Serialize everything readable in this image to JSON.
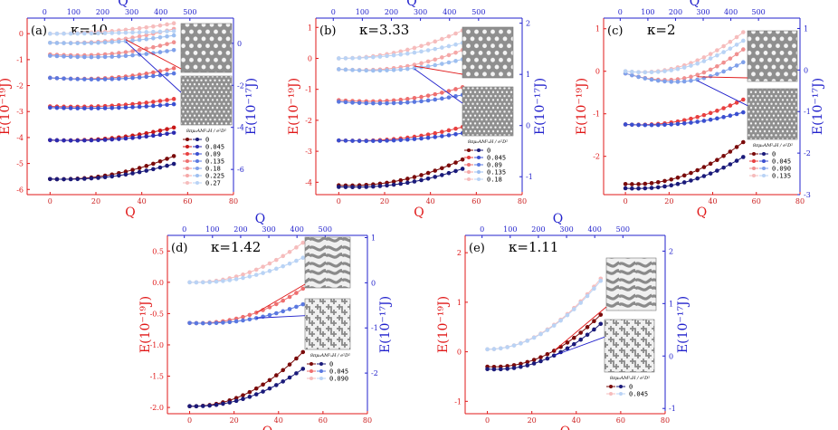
{
  "colors": {
    "left_axis": "#e01818",
    "right_axis": "#2222cc",
    "palette_red": [
      "#7a0a0a",
      "#c81818",
      "#e84040",
      "#ee6f6f",
      "#f09090",
      "#f5a8a8",
      "#f6bcbc"
    ],
    "palette_blue": [
      "#1a1a7a",
      "#2b2bb0",
      "#3a4fd0",
      "#5a78e0",
      "#7fa0ea",
      "#9dbff0",
      "#b9d3f5"
    ]
  },
  "chart_data": [
    {
      "type": "line",
      "panel": "(a)",
      "kappa_label": "κ=10",
      "xlabel": "Q",
      "x2label": "Q",
      "ylabel": "E(10⁻¹⁹J)",
      "y2label": "E(10⁻¹⁷J)",
      "xlim": [
        -10,
        80
      ],
      "x2lim": [
        -60,
        650
      ],
      "xticks": [
        0,
        20,
        40,
        60,
        80
      ],
      "x2ticks": [
        0,
        100,
        200,
        300,
        400,
        500
      ],
      "ylim": [
        -6.2,
        0.6
      ],
      "yticks": [
        0,
        -1,
        -2,
        -3,
        -4,
        -5,
        -6
      ],
      "y2lim": [
        -7.2,
        1.2
      ],
      "y2ticks": [
        0,
        -2,
        -4,
        -6
      ],
      "legend_title": "8πμ₀AM²ₛH / e²D²",
      "legend_labels": [
        "0",
        "0.045",
        "0.09",
        "0.135",
        "0.18",
        "0.225",
        "0.27"
      ],
      "x_values": [
        0,
        3,
        6,
        9,
        12,
        15,
        18,
        21,
        24,
        27,
        30,
        33,
        36,
        39,
        42,
        45,
        48,
        51,
        54
      ],
      "series_red": [
        {
          "start": -5.6,
          "dip": -0.05,
          "end": -4.7
        },
        {
          "start": -4.1,
          "dip": -0.05,
          "end": -3.6
        },
        {
          "start": -2.8,
          "dip": -0.05,
          "end": -2.5
        },
        {
          "start": -1.7,
          "dip": -0.1,
          "end": -1.3
        },
        {
          "start": -0.8,
          "dip": -0.1,
          "end": -0.3
        },
        {
          "start": -0.35,
          "dip": -0.05,
          "end": 0.2
        },
        {
          "start": 0.0,
          "dip": 0.0,
          "end": 0.4
        }
      ],
      "series_blue": [
        {
          "start": -5.6,
          "dip": -0.05,
          "end": -5.0
        },
        {
          "start": -4.1,
          "dip": -0.05,
          "end": -3.8
        },
        {
          "start": -2.85,
          "dip": -0.05,
          "end": -2.7
        },
        {
          "start": -1.7,
          "dip": -0.1,
          "end": -1.5
        },
        {
          "start": -0.85,
          "dip": -0.1,
          "end": -0.6
        },
        {
          "start": -0.35,
          "dip": -0.05,
          "end": -0.05
        },
        {
          "start": 0.0,
          "dip": 0.0,
          "end": 0.1
        }
      ]
    },
    {
      "type": "line",
      "panel": "(b)",
      "kappa_label": "κ=3.33",
      "xlabel": "Q",
      "x2label": "Q",
      "ylabel": "E(10⁻¹⁹J)",
      "y2label": "E(10⁻¹⁷J)",
      "xlim": [
        -10,
        80
      ],
      "x2lim": [
        -60,
        650
      ],
      "xticks": [
        0,
        20,
        40,
        60,
        80
      ],
      "x2ticks": [
        0,
        100,
        200,
        300,
        400,
        500
      ],
      "ylim": [
        -4.4,
        1.3
      ],
      "yticks": [
        1,
        0,
        -1,
        -2,
        -3,
        -4
      ],
      "y2lim": [
        -1.35,
        2.1
      ],
      "y2ticks": [
        2,
        1,
        0,
        -1
      ],
      "legend_title": "8πμ₀AM²ₛH / e²D²",
      "legend_labels": [
        "0",
        "0.045",
        "0.09",
        "0.135",
        "0.18"
      ],
      "x_values": [
        0,
        3,
        6,
        9,
        12,
        15,
        18,
        21,
        24,
        27,
        30,
        33,
        36,
        39,
        42,
        45,
        48,
        51,
        54
      ],
      "series_red": [
        {
          "start": -4.1,
          "dip": -0.05,
          "end": -3.25
        },
        {
          "start": -2.65,
          "dip": -0.05,
          "end": -2.2
        },
        {
          "start": -1.35,
          "dip": -0.1,
          "end": -0.9
        },
        {
          "start": -0.35,
          "dip": -0.1,
          "end": 0.3
        },
        {
          "start": 0.0,
          "dip": 0.0,
          "end": 0.9
        }
      ],
      "series_blue": [
        {
          "start": -4.15,
          "dip": -0.05,
          "end": -3.55
        },
        {
          "start": -2.65,
          "dip": -0.05,
          "end": -2.4
        },
        {
          "start": -1.4,
          "dip": -0.1,
          "end": -1.15
        },
        {
          "start": -0.35,
          "dip": -0.1,
          "end": 0.0
        },
        {
          "start": 0.0,
          "dip": 0.0,
          "end": 0.5
        }
      ]
    },
    {
      "type": "line",
      "panel": "(c)",
      "kappa_label": "κ=2",
      "xlabel": "Q",
      "x2label": "Q",
      "ylabel": "E(10⁻¹⁹J)",
      "y2label": "E(10⁻¹⁷J)",
      "xlim": [
        -10,
        80
      ],
      "x2lim": [
        -60,
        650
      ],
      "xticks": [
        0,
        20,
        40,
        60,
        80
      ],
      "x2ticks": [
        0,
        100,
        200,
        300,
        400,
        500
      ],
      "ylim": [
        -2.9,
        1.25
      ],
      "yticks": [
        1,
        0,
        -1,
        -2
      ],
      "y2lim": [
        -3.0,
        1.25
      ],
      "y2ticks": [
        1,
        0,
        -1,
        -2,
        -3
      ],
      "legend_title": "8πμ₀AM²ₛH / e²D²",
      "legend_labels": [
        "0",
        "0.045",
        "0.090",
        "0.135"
      ],
      "x_values": [
        0,
        3,
        6,
        9,
        12,
        15,
        18,
        21,
        24,
        27,
        30,
        33,
        36,
        39,
        42,
        45,
        48,
        51,
        54
      ],
      "series_red": [
        {
          "start": -2.65,
          "dip": -0.05,
          "end": -1.65
        },
        {
          "start": -1.25,
          "dip": -0.05,
          "end": -0.65
        },
        {
          "start": -0.05,
          "dip": -0.28,
          "end": 0.6
        },
        {
          "start": 0.0,
          "dip": -0.1,
          "end": 0.95
        }
      ],
      "series_blue": [
        {
          "start": -2.75,
          "dip": -0.05,
          "end": -2.0
        },
        {
          "start": -1.25,
          "dip": -0.05,
          "end": -0.95
        },
        {
          "start": -0.05,
          "dip": -0.28,
          "end": 0.3
        },
        {
          "start": 0.0,
          "dip": -0.1,
          "end": 0.75
        }
      ]
    },
    {
      "type": "line",
      "panel": "(d)",
      "kappa_label": "κ=1.42",
      "xlabel": "Q",
      "x2label": "Q",
      "ylabel": "E(10⁻¹⁹J)",
      "y2label": "E(10⁻¹⁷J)",
      "xlim": [
        -10,
        80
      ],
      "x2lim": [
        -60,
        650
      ],
      "xticks": [
        0,
        20,
        40,
        60,
        80
      ],
      "x2ticks": [
        0,
        100,
        200,
        300,
        400,
        500
      ],
      "ylim": [
        -2.1,
        0.75
      ],
      "yticks": [
        0.5,
        0.0,
        -0.5,
        -1.0,
        -1.5,
        -2.0
      ],
      "ytick_labels": [
        "0.5",
        "0.0",
        "-0.5",
        "-1.0",
        "-1.5",
        "-2.0"
      ],
      "y2lim": [
        -2.9,
        1.05
      ],
      "y2ticks": [
        1,
        0,
        -1,
        -2
      ],
      "legend_title": "8πμ₀AM²ₛH / e²D²",
      "legend_labels": [
        "0",
        "0.045",
        "0.090"
      ],
      "x_values": [
        0,
        3,
        6,
        9,
        12,
        15,
        18,
        21,
        24,
        27,
        30,
        33,
        36,
        39,
        42,
        45,
        48,
        51
      ],
      "series_red": [
        {
          "start": -1.98,
          "dip": -0.02,
          "end": -1.0
        },
        {
          "start": -0.65,
          "dip": -0.03,
          "end": -0.02
        },
        {
          "start": 0.0,
          "dip": -0.02,
          "end": 0.72
        }
      ],
      "series_blue": [
        {
          "start": -1.98,
          "dip": -0.02,
          "end": -1.3
        },
        {
          "start": -0.65,
          "dip": -0.03,
          "end": -0.3
        },
        {
          "start": 0.0,
          "dip": -0.02,
          "end": 0.45
        }
      ]
    },
    {
      "type": "line",
      "panel": "(e)",
      "kappa_label": "κ=1.11",
      "xlabel": "Q",
      "x2label": "Q",
      "ylabel": "E(10⁻¹⁹J)",
      "y2label": "E(10⁻¹⁷J)",
      "xlim": [
        -10,
        80
      ],
      "x2lim": [
        -60,
        650
      ],
      "xticks": [
        0,
        20,
        40,
        60,
        80
      ],
      "x2ticks": [
        0,
        100,
        200,
        300,
        400,
        500
      ],
      "ylim": [
        -1.25,
        2.35
      ],
      "yticks": [
        2,
        1,
        0,
        -1
      ],
      "y2lim": [
        -1.1,
        2.3
      ],
      "y2ticks": [
        2,
        1,
        0,
        -1
      ],
      "legend_title": "8πμ₀AM²ₛH / e²D²",
      "legend_labels": [
        "0",
        "0.045"
      ],
      "x_values": [
        0,
        3,
        6,
        9,
        12,
        15,
        18,
        21,
        24,
        27,
        30,
        33,
        36,
        39,
        42,
        45,
        48,
        51
      ],
      "series_red": [
        {
          "start": -0.3,
          "dip": -0.05,
          "end": 0.9
        },
        {
          "start": 0.05,
          "dip": 0.0,
          "end": 1.65
        }
      ],
      "series_blue": [
        {
          "start": -0.35,
          "dip": -0.05,
          "end": 0.7
        },
        {
          "start": 0.05,
          "dip": 0.0,
          "end": 1.6
        }
      ]
    }
  ]
}
